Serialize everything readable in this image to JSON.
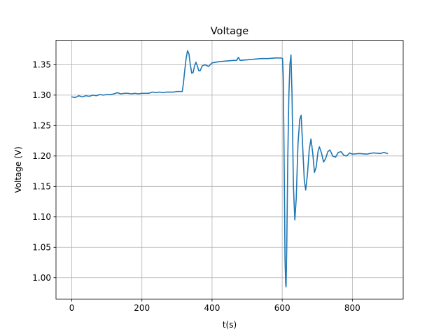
{
  "chart_data": {
    "type": "line",
    "title": "Voltage",
    "xlabel": "t(s)",
    "ylabel": "Voltage (V)",
    "xlim": [
      -45,
      945
    ],
    "ylim": [
      0.965,
      1.39
    ],
    "grid": true,
    "xticks": [
      0,
      200,
      400,
      600,
      800
    ],
    "xtick_labels": [
      "0",
      "200",
      "400",
      "600",
      "800"
    ],
    "yticks": [
      1.0,
      1.05,
      1.1,
      1.15,
      1.2,
      1.25,
      1.3,
      1.35
    ],
    "ytick_labels": [
      "1.00",
      "1.05",
      "1.10",
      "1.15",
      "1.20",
      "1.25",
      "1.30",
      "1.35"
    ],
    "series": [
      {
        "color": "#1f77b4",
        "points": [
          [
            0,
            1.297
          ],
          [
            10,
            1.296
          ],
          [
            20,
            1.299
          ],
          [
            30,
            1.297
          ],
          [
            40,
            1.299
          ],
          [
            50,
            1.298
          ],
          [
            60,
            1.3
          ],
          [
            70,
            1.299
          ],
          [
            80,
            1.301
          ],
          [
            90,
            1.3
          ],
          [
            100,
            1.301
          ],
          [
            110,
            1.301
          ],
          [
            120,
            1.302
          ],
          [
            130,
            1.304
          ],
          [
            140,
            1.302
          ],
          [
            150,
            1.303
          ],
          [
            160,
            1.303
          ],
          [
            170,
            1.302
          ],
          [
            180,
            1.303
          ],
          [
            190,
            1.302
          ],
          [
            200,
            1.303
          ],
          [
            210,
            1.303
          ],
          [
            220,
            1.303
          ],
          [
            230,
            1.305
          ],
          [
            240,
            1.304
          ],
          [
            250,
            1.305
          ],
          [
            260,
            1.304
          ],
          [
            270,
            1.305
          ],
          [
            280,
            1.305
          ],
          [
            290,
            1.305
          ],
          [
            300,
            1.306
          ],
          [
            315,
            1.306
          ],
          [
            318,
            1.318
          ],
          [
            322,
            1.34
          ],
          [
            326,
            1.36
          ],
          [
            330,
            1.373
          ],
          [
            334,
            1.368
          ],
          [
            338,
            1.35
          ],
          [
            342,
            1.336
          ],
          [
            346,
            1.337
          ],
          [
            350,
            1.348
          ],
          [
            354,
            1.354
          ],
          [
            358,
            1.348
          ],
          [
            362,
            1.34
          ],
          [
            366,
            1.34
          ],
          [
            372,
            1.348
          ],
          [
            380,
            1.35
          ],
          [
            390,
            1.347
          ],
          [
            400,
            1.353
          ],
          [
            420,
            1.355
          ],
          [
            440,
            1.356
          ],
          [
            460,
            1.357
          ],
          [
            470,
            1.357
          ],
          [
            475,
            1.362
          ],
          [
            480,
            1.357
          ],
          [
            500,
            1.358
          ],
          [
            520,
            1.359
          ],
          [
            540,
            1.36
          ],
          [
            560,
            1.36
          ],
          [
            580,
            1.361
          ],
          [
            597,
            1.361
          ],
          [
            601,
            1.36
          ],
          [
            603,
            1.33
          ],
          [
            605,
            1.22
          ],
          [
            607,
            1.1
          ],
          [
            608,
            1.03
          ],
          [
            610,
            0.99
          ],
          [
            611,
            0.985
          ],
          [
            613,
            1.05
          ],
          [
            616,
            1.2
          ],
          [
            619,
            1.3
          ],
          [
            622,
            1.35
          ],
          [
            625,
            1.366
          ],
          [
            628,
            1.3
          ],
          [
            632,
            1.15
          ],
          [
            636,
            1.095
          ],
          [
            640,
            1.13
          ],
          [
            645,
            1.22
          ],
          [
            650,
            1.26
          ],
          [
            654,
            1.267
          ],
          [
            658,
            1.22
          ],
          [
            663,
            1.16
          ],
          [
            667,
            1.144
          ],
          [
            672,
            1.17
          ],
          [
            677,
            1.21
          ],
          [
            682,
            1.228
          ],
          [
            687,
            1.205
          ],
          [
            692,
            1.173
          ],
          [
            697,
            1.182
          ],
          [
            702,
            1.207
          ],
          [
            706,
            1.215
          ],
          [
            712,
            1.205
          ],
          [
            718,
            1.19
          ],
          [
            724,
            1.196
          ],
          [
            730,
            1.207
          ],
          [
            736,
            1.21
          ],
          [
            744,
            1.2
          ],
          [
            752,
            1.198
          ],
          [
            760,
            1.206
          ],
          [
            768,
            1.207
          ],
          [
            776,
            1.201
          ],
          [
            784,
            1.2
          ],
          [
            792,
            1.205
          ],
          [
            800,
            1.203
          ],
          [
            820,
            1.204
          ],
          [
            840,
            1.203
          ],
          [
            860,
            1.205
          ],
          [
            880,
            1.204
          ],
          [
            890,
            1.206
          ],
          [
            900,
            1.204
          ]
        ]
      }
    ]
  }
}
